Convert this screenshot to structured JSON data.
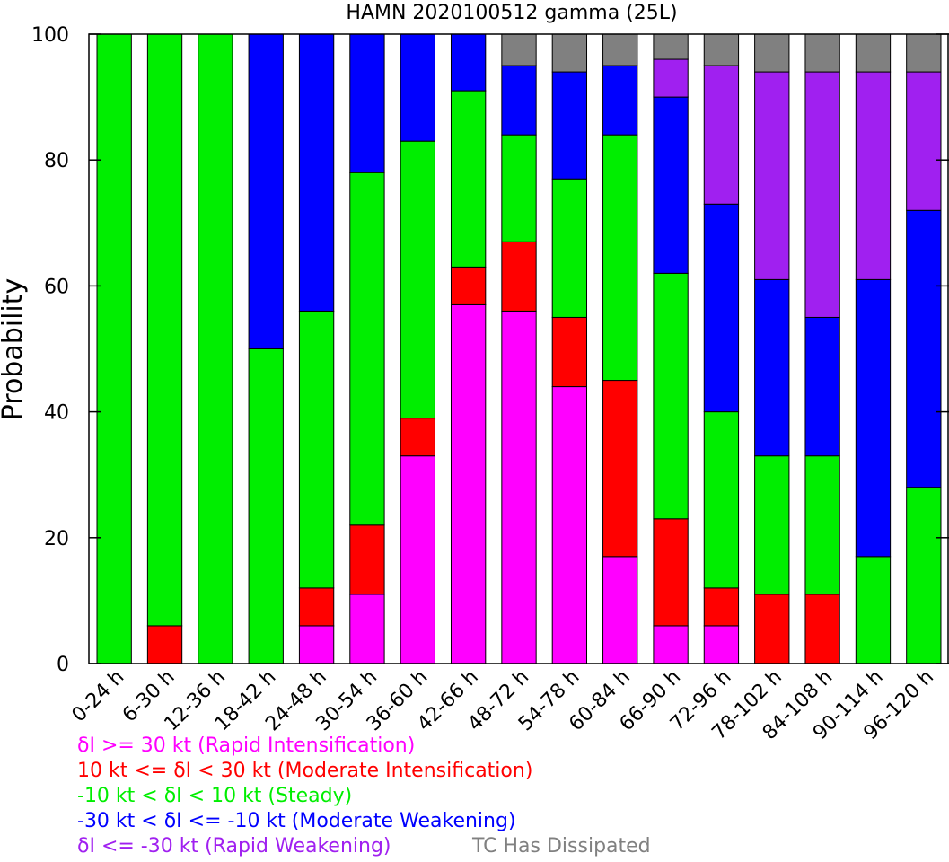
{
  "chart_data": {
    "type": "bar",
    "stacked": true,
    "title": "HAMN 2020100512 gamma (25L)",
    "xlabel": "",
    "ylabel": "Probability",
    "ylim": [
      0,
      100
    ],
    "yticks": [
      0,
      20,
      40,
      60,
      80,
      100
    ],
    "categories": [
      "0-24 h",
      "6-30 h",
      "12-36 h",
      "18-42 h",
      "24-48 h",
      "30-54 h",
      "36-60 h",
      "42-66 h",
      "48-72 h",
      "54-78 h",
      "60-84 h",
      "66-90 h",
      "72-96 h",
      "78-102 h",
      "84-108 h",
      "90-114 h",
      "96-120 h"
    ],
    "series": [
      {
        "name": "δI >= 30 kt (Rapid Intensification)",
        "color": "#ff00ff",
        "values": [
          0,
          0,
          0,
          0,
          6,
          11,
          33,
          57,
          56,
          44,
          17,
          6,
          6,
          0,
          0,
          0,
          0
        ]
      },
      {
        "name": "10 kt <= δI < 30 kt (Moderate Intensification)",
        "color": "#ff0000",
        "values": [
          0,
          6,
          0,
          0,
          6,
          11,
          6,
          6,
          11,
          11,
          28,
          17,
          6,
          11,
          11,
          0,
          0
        ]
      },
      {
        "name": "-10 kt < δI < 10 kt (Steady)",
        "color": "#00ee00",
        "values": [
          100,
          94,
          100,
          50,
          44,
          56,
          44,
          28,
          17,
          22,
          39,
          39,
          28,
          22,
          22,
          17,
          28
        ]
      },
      {
        "name": "-30 kt < δI <= -10 kt (Moderate Weakening)",
        "color": "#0000ff",
        "values": [
          0,
          0,
          0,
          50,
          44,
          22,
          17,
          9,
          11,
          17,
          11,
          28,
          33,
          28,
          22,
          44,
          44
        ]
      },
      {
        "name": "δI <= -30 kt (Rapid Weakening)",
        "color": "#a020f0",
        "values": [
          0,
          0,
          0,
          0,
          0,
          0,
          0,
          0,
          0,
          0,
          0,
          6,
          22,
          33,
          39,
          33,
          22
        ]
      },
      {
        "name": "TC Has Dissipated",
        "color": "#808080",
        "values": [
          0,
          0,
          0,
          0,
          0,
          0,
          0,
          0,
          5,
          6,
          5,
          4,
          5,
          6,
          6,
          6,
          6
        ]
      }
    ],
    "legend_placement": "bottom-left"
  }
}
